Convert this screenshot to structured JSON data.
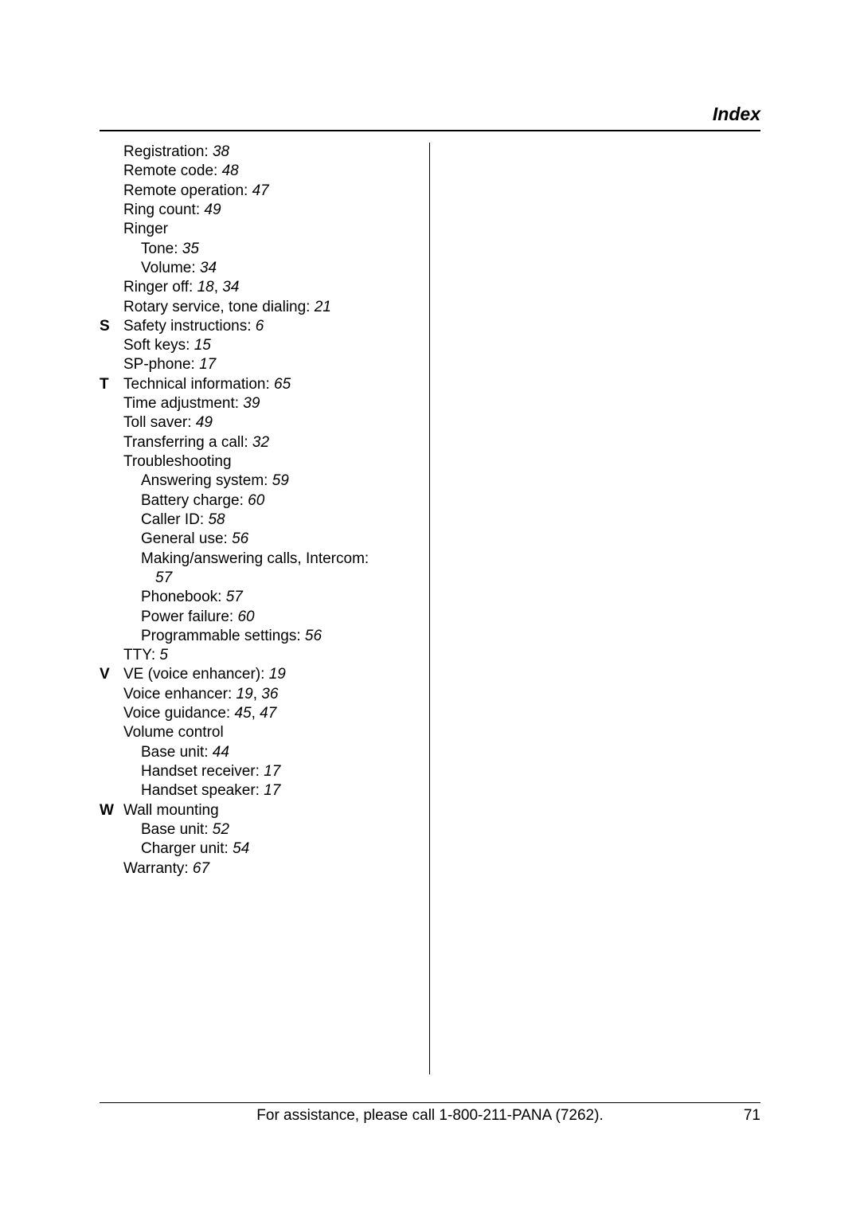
{
  "header_title": "Index",
  "footer_text": "For assistance, please call 1-800-211-PANA (7262).",
  "footer_page": "71",
  "sections": [
    {
      "letter": "",
      "entries": [
        {
          "text": "Registration:",
          "pg": "38"
        },
        {
          "text": "Remote code:",
          "pg": "48"
        },
        {
          "text": "Remote operation:",
          "pg": "47"
        },
        {
          "text": "Ring count:",
          "pg": "49"
        },
        {
          "text": "Ringer"
        },
        {
          "text": "Tone:",
          "pg": "35",
          "cls": "sub1"
        },
        {
          "text": "Volume:",
          "pg": "34",
          "cls": "sub1"
        },
        {
          "text": "Ringer off:",
          "pg": "18",
          "sep": ",",
          "pg2": "34"
        },
        {
          "text": "Rotary service, tone dialing:",
          "pg": "21"
        }
      ]
    },
    {
      "letter": "S",
      "entries": [
        {
          "text": "Safety instructions:",
          "pg": "6"
        },
        {
          "text": "Soft keys:",
          "pg": "15"
        },
        {
          "text": "SP-phone:",
          "pg": "17"
        }
      ]
    },
    {
      "letter": "T",
      "entries": [
        {
          "text": "Technical information:",
          "pg": "65"
        },
        {
          "text": "Time adjustment:",
          "pg": "39"
        },
        {
          "text": "Toll saver:",
          "pg": "49"
        },
        {
          "text": "Transferring a call:",
          "pg": "32"
        },
        {
          "text": "Troubleshooting"
        },
        {
          "text": "Answering system:",
          "pg": "59",
          "cls": "sub1"
        },
        {
          "text": "Battery charge:",
          "pg": "60",
          "cls": "sub1"
        },
        {
          "text": "Caller ID:",
          "pg": "58",
          "cls": "sub1"
        },
        {
          "text": "General use:",
          "pg": "56",
          "cls": "sub1"
        },
        {
          "text": "Making/answering calls, Intercom:",
          "cls": "sub1"
        },
        {
          "pg": "57",
          "cls": "sub2",
          "only_pg": true
        },
        {
          "text": "Phonebook:",
          "pg": "57",
          "cls": "sub1"
        },
        {
          "text": "Power failure:",
          "pg": "60",
          "cls": "sub1"
        },
        {
          "text": "Programmable settings:",
          "pg": "56",
          "cls": "sub1"
        },
        {
          "text": "TTY:",
          "pg": "5"
        }
      ]
    },
    {
      "letter": "V",
      "entries": [
        {
          "text": "VE (voice enhancer):",
          "pg": "19"
        },
        {
          "text": "Voice enhancer:",
          "pg": "19",
          "sep": ",",
          "pg2": "36"
        },
        {
          "text": "Voice guidance:",
          "pg": "45",
          "sep": ",",
          "pg2": "47"
        },
        {
          "text": "Volume control"
        },
        {
          "text": "Base unit:",
          "pg": "44",
          "cls": "sub1"
        },
        {
          "text": "Handset receiver:",
          "pg": "17",
          "cls": "sub1"
        },
        {
          "text": "Handset speaker:",
          "pg": "17",
          "cls": "sub1"
        }
      ]
    },
    {
      "letter": "W",
      "entries": [
        {
          "text": "Wall mounting"
        },
        {
          "text": "Base unit:",
          "pg": "52",
          "cls": "sub1"
        },
        {
          "text": "Charger unit:",
          "pg": "54",
          "cls": "sub1"
        },
        {
          "text": "Warranty:",
          "pg": "67"
        }
      ]
    }
  ]
}
